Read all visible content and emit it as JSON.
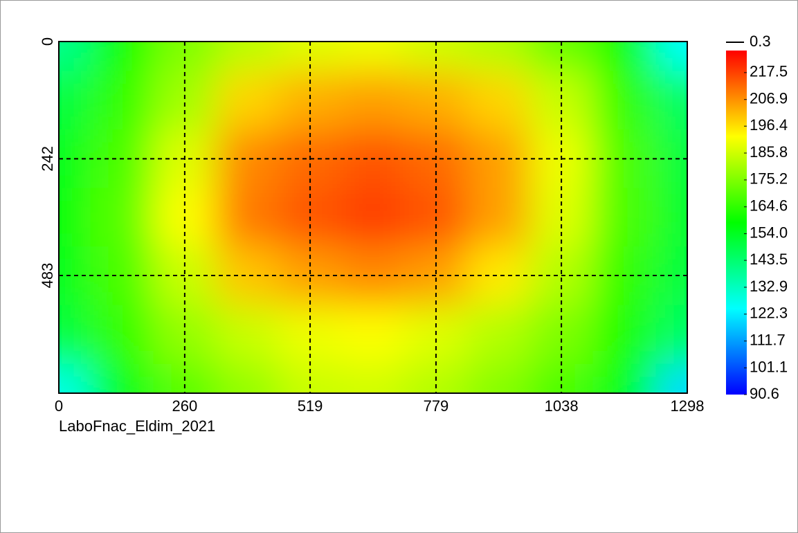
{
  "chart_data": {
    "type": "heatmap",
    "title": "LaboFnac_Eldim_2021",
    "x": [
      0,
      130,
      260,
      389,
      519,
      649,
      779,
      908,
      1038,
      1168,
      1298
    ],
    "y": [
      0,
      121,
      242,
      363,
      483,
      605,
      726
    ],
    "z": [
      [
        140,
        160,
        175,
        183,
        188,
        190,
        186,
        182,
        172,
        160,
        125
      ],
      [
        150,
        165,
        180,
        198,
        203,
        205,
        203,
        198,
        185,
        165,
        145
      ],
      [
        155,
        168,
        188,
        208,
        212,
        215,
        212,
        205,
        190,
        168,
        150
      ],
      [
        157,
        170,
        192,
        210,
        215,
        218,
        215,
        205,
        188,
        168,
        152
      ],
      [
        155,
        168,
        185,
        200,
        205,
        208,
        205,
        195,
        182,
        165,
        150
      ],
      [
        150,
        165,
        178,
        185,
        190,
        192,
        188,
        182,
        175,
        162,
        145
      ],
      [
        128,
        155,
        170,
        178,
        185,
        186,
        182,
        176,
        168,
        155,
        120
      ]
    ],
    "xlim": [
      0,
      1298
    ],
    "ylim": [
      726,
      0
    ],
    "xticks": [
      0,
      260,
      519,
      779,
      1038,
      1298
    ],
    "yticks": [
      0,
      242,
      483
    ],
    "grid": true,
    "colormap": [
      "#0000ff",
      "#00ffff",
      "#00ff00",
      "#ffff00",
      "#ff0000"
    ],
    "clim": [
      90.6,
      226.2
    ],
    "cticks": [
      217.5,
      206.9,
      196.4,
      185.8,
      175.2,
      164.6,
      {
        "value": 154,
        "label": "154.0"
      },
      143.5,
      132.9,
      122.3,
      111.7,
      101.1,
      90.6
    ],
    "grid_label": 0.3
  }
}
